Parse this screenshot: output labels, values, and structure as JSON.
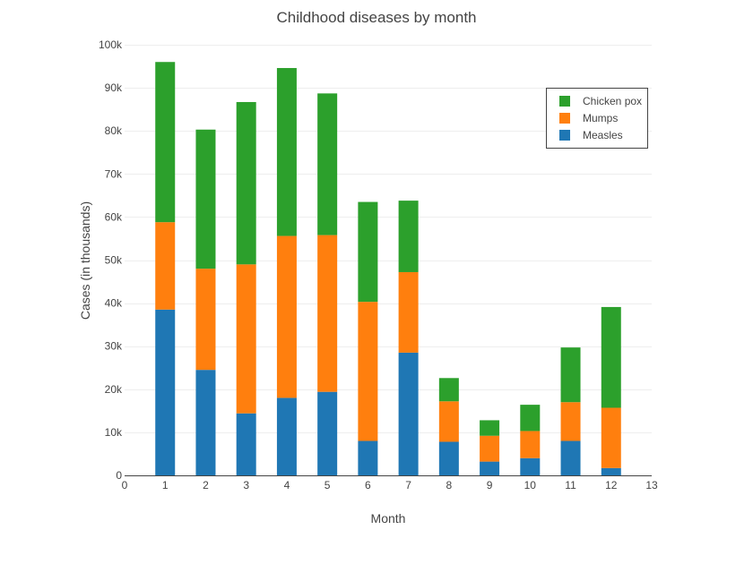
{
  "chart_data": {
    "type": "bar",
    "stacked": true,
    "title": "Childhood diseases by month",
    "xlabel": "Month",
    "ylabel": "Cases (in thousands)",
    "xlim": [
      0,
      13
    ],
    "ylim": [
      0,
      100000
    ],
    "x_ticks": [
      "0",
      "1",
      "2",
      "3",
      "4",
      "5",
      "6",
      "7",
      "8",
      "9",
      "10",
      "11",
      "12",
      "13"
    ],
    "y_ticks": [
      "0",
      "10k",
      "20k",
      "30k",
      "40k",
      "50k",
      "60k",
      "70k",
      "80k",
      "90k",
      "100k"
    ],
    "categories": [
      1,
      2,
      3,
      4,
      5,
      6,
      7,
      8,
      9,
      10,
      11,
      12
    ],
    "grid": "horizontal",
    "legend_position": "top-right",
    "series": [
      {
        "name": "Measles",
        "color": "#1f77b4",
        "values": [
          38500,
          24500,
          14400,
          18000,
          19400,
          8000,
          28500,
          7800,
          3200,
          4000,
          8000,
          1700
        ]
      },
      {
        "name": "Mumps",
        "color": "#ff7f0e",
        "values": [
          20300,
          23500,
          34600,
          37600,
          36400,
          32300,
          18700,
          9400,
          6000,
          6300,
          9000,
          14000
        ]
      },
      {
        "name": "Chicken pox",
        "color": "#2ca02c",
        "values": [
          37200,
          32300,
          37700,
          39000,
          32900,
          23200,
          16600,
          5400,
          3600,
          6100,
          12700,
          23400
        ]
      }
    ],
    "legend_order": [
      "Chicken pox",
      "Mumps",
      "Measles"
    ]
  }
}
